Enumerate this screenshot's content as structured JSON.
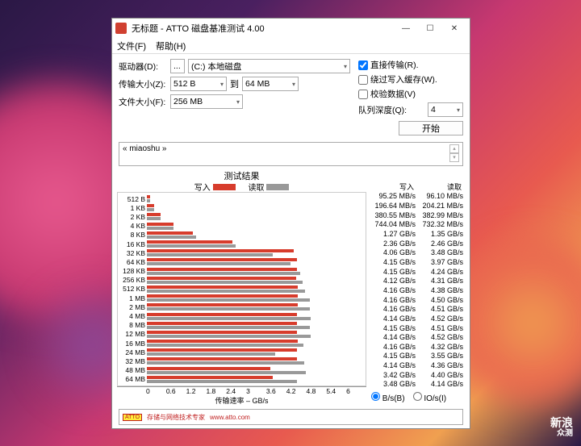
{
  "window": {
    "title": "无标题 - ATTO 磁盘基准测试 4.00",
    "menu": {
      "file": "文件(F)",
      "help": "帮助(H)"
    }
  },
  "form": {
    "drive_label": "驱动器(D):",
    "drive_value": "(C:) 本地磁盘",
    "xfer_label": "传输大小(Z):",
    "xfer_from": "512 B",
    "xfer_to_label": "到",
    "xfer_to": "64 MB",
    "filesize_label": "文件大小(F):",
    "filesize_value": "256 MB",
    "direct_label": "直接传输(R).",
    "bypass_label": "绕过写入缓存(W).",
    "verify_label": "校验数据(V)",
    "queue_label": "队列深度(Q):",
    "queue_value": "4",
    "start_btn": "开始",
    "desc": "« miaoshu »"
  },
  "chart": {
    "results_title": "测试结果",
    "write_legend": "写入",
    "read_legend": "读取",
    "write_color": "#d73c2c",
    "read_color": "#999999",
    "xaxis_label": "传输速率 – GB/s",
    "xticks": [
      "0",
      "0.6",
      "1.2",
      "1.8",
      "2.4",
      "3",
      "3.6",
      "4.2",
      "4.8",
      "5.4",
      "6"
    ],
    "xmax": 6.0,
    "sizes": [
      "512 B",
      "1 KB",
      "2 KB",
      "4 KB",
      "8 KB",
      "16 KB",
      "32 KB",
      "64 KB",
      "128 KB",
      "256 KB",
      "512 KB",
      "1 MB",
      "2 MB",
      "4 MB",
      "8 MB",
      "12 MB",
      "16 MB",
      "24 MB",
      "32 MB",
      "48 MB",
      "64 MB"
    ],
    "write_gbs": [
      0.095,
      0.197,
      0.381,
      0.744,
      1.27,
      2.36,
      4.06,
      4.15,
      4.15,
      4.12,
      4.16,
      4.16,
      4.16,
      4.14,
      4.15,
      4.14,
      4.16,
      4.15,
      4.14,
      3.42,
      3.48
    ],
    "read_gbs": [
      0.096,
      0.204,
      0.383,
      0.732,
      1.35,
      2.46,
      3.48,
      3.97,
      4.24,
      4.31,
      4.38,
      4.5,
      4.51,
      4.52,
      4.51,
      4.52,
      4.32,
      3.55,
      4.36,
      4.4,
      4.14
    ]
  },
  "data": {
    "write_hdr": "写入",
    "read_hdr": "读取",
    "rows": [
      {
        "w": "95.25 MB/s",
        "r": "96.10 MB/s"
      },
      {
        "w": "196.64 MB/s",
        "r": "204.21 MB/s"
      },
      {
        "w": "380.55 MB/s",
        "r": "382.99 MB/s"
      },
      {
        "w": "744.04 MB/s",
        "r": "732.32 MB/s"
      },
      {
        "w": "1.27 GB/s",
        "r": "1.35 GB/s"
      },
      {
        "w": "2.36 GB/s",
        "r": "2.46 GB/s"
      },
      {
        "w": "4.06 GB/s",
        "r": "3.48 GB/s"
      },
      {
        "w": "4.15 GB/s",
        "r": "3.97 GB/s"
      },
      {
        "w": "4.15 GB/s",
        "r": "4.24 GB/s"
      },
      {
        "w": "4.12 GB/s",
        "r": "4.31 GB/s"
      },
      {
        "w": "4.16 GB/s",
        "r": "4.38 GB/s"
      },
      {
        "w": "4.16 GB/s",
        "r": "4.50 GB/s"
      },
      {
        "w": "4.16 GB/s",
        "r": "4.51 GB/s"
      },
      {
        "w": "4.14 GB/s",
        "r": "4.52 GB/s"
      },
      {
        "w": "4.15 GB/s",
        "r": "4.51 GB/s"
      },
      {
        "w": "4.14 GB/s",
        "r": "4.52 GB/s"
      },
      {
        "w": "4.16 GB/s",
        "r": "4.32 GB/s"
      },
      {
        "w": "4.15 GB/s",
        "r": "3.55 GB/s"
      },
      {
        "w": "4.14 GB/s",
        "r": "4.36 GB/s"
      },
      {
        "w": "3.42 GB/s",
        "r": "4.40 GB/s"
      },
      {
        "w": "3.48 GB/s",
        "r": "4.14 GB/s"
      }
    ],
    "radio_bs": "B/s(B)",
    "radio_ios": "IO/s(I)"
  },
  "footer": {
    "logo": "ATTO",
    "text": "存储与网络技术专家",
    "url": "www.atto.com"
  },
  "watermark": {
    "line1": "新浪",
    "line2": "众测"
  }
}
